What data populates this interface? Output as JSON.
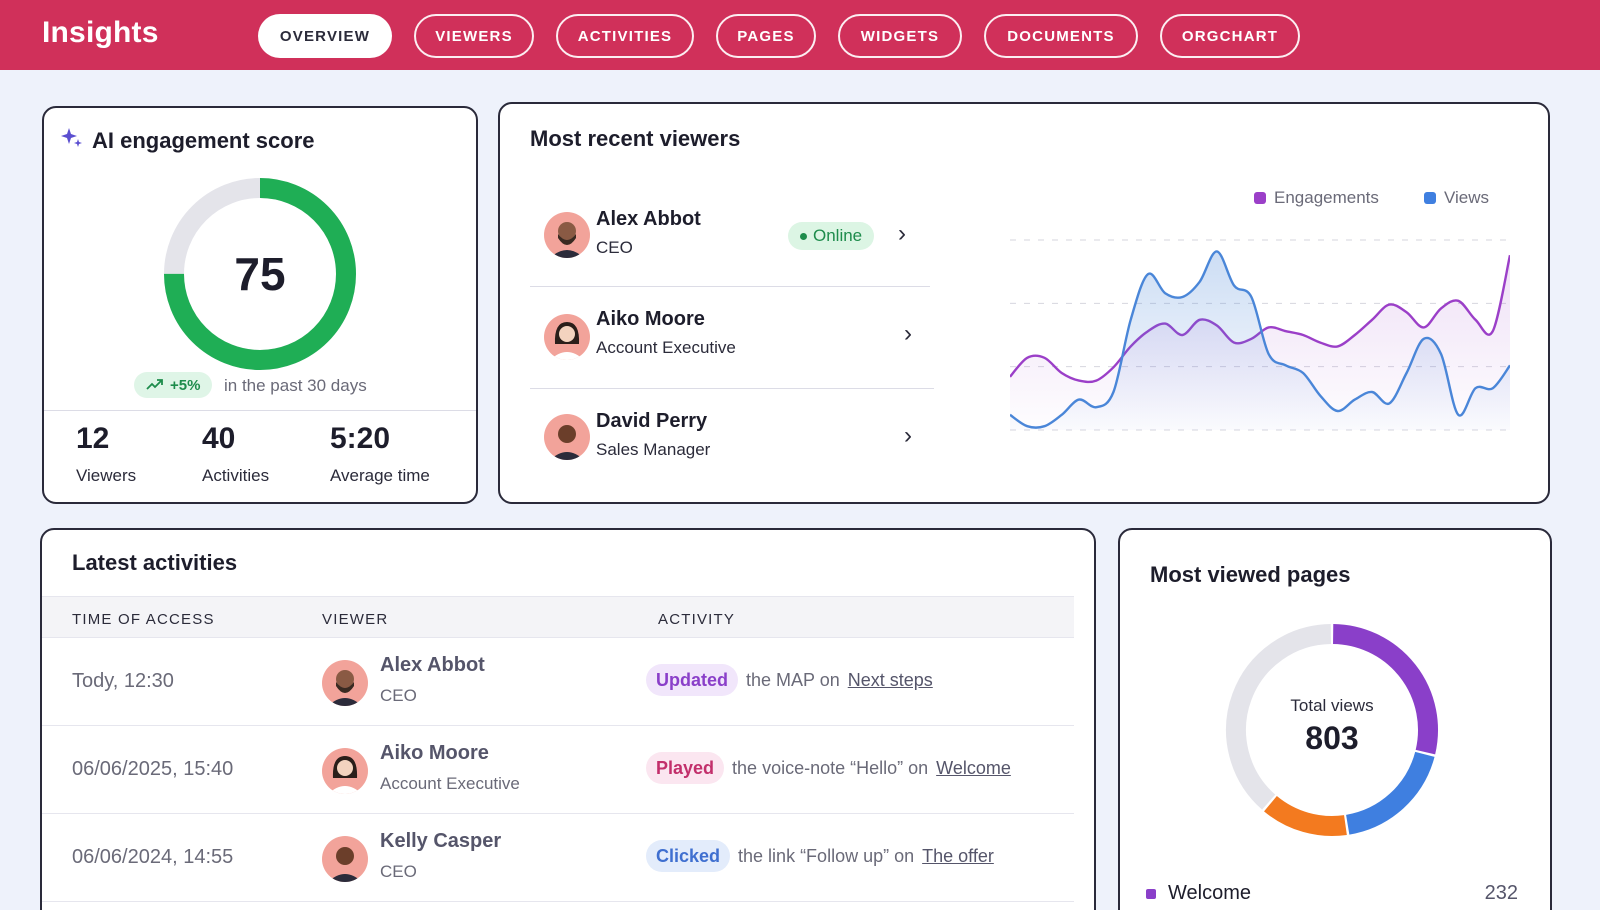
{
  "header": {
    "title": "Insights",
    "tabs": [
      {
        "label": "OVERVIEW"
      },
      {
        "label": "VIEWERS"
      },
      {
        "label": "ACTIVITIES"
      },
      {
        "label": "PAGES"
      },
      {
        "label": "WIDGETS"
      },
      {
        "label": "DOCUMENTS"
      },
      {
        "label": "ORGCHART"
      }
    ],
    "active_tab": "OVERVIEW"
  },
  "engagement": {
    "title": "AI engagement score",
    "score": "75",
    "score_fraction": 0.75,
    "trend": "+5%",
    "trend_text": "in the past 30 days",
    "stats": [
      {
        "value": "12",
        "label": "Viewers"
      },
      {
        "value": "40",
        "label": "Activities"
      },
      {
        "value": "5:20",
        "label": "Average time"
      }
    ]
  },
  "recent_viewers": {
    "title": "Most recent viewers",
    "items": [
      {
        "name": "Alex Abbot",
        "role": "CEO",
        "status": "Online"
      },
      {
        "name": "Aiko Moore",
        "role": "Account Executive"
      },
      {
        "name": "David Perry",
        "role": "Sales Manager"
      }
    ],
    "legend": {
      "engagements": "Engagements",
      "views": "Views"
    }
  },
  "chart_data": {
    "type": "line",
    "title": "",
    "xlabel": "",
    "ylabel": "",
    "ylim": [
      0,
      100
    ],
    "grid": true,
    "legend_placement": "top-right",
    "series": [
      {
        "name": "Engagements",
        "color": "#9b3fc8",
        "values": [
          28,
          38,
          38,
          30,
          26,
          26,
          33,
          44,
          52,
          56,
          50,
          58,
          55,
          46,
          48,
          54,
          52,
          50,
          46,
          44,
          50,
          58,
          66,
          62,
          54,
          64,
          68,
          58,
          52,
          92
        ]
      },
      {
        "name": "Views",
        "color": "#4a86d8",
        "values": [
          8,
          2,
          2,
          8,
          16,
          12,
          20,
          58,
          82,
          72,
          70,
          78,
          94,
          76,
          70,
          40,
          34,
          30,
          18,
          10,
          16,
          20,
          14,
          30,
          48,
          40,
          8,
          22,
          22,
          34
        ]
      }
    ]
  },
  "activities": {
    "title": "Latest activities",
    "columns": [
      "TIME OF ACCESS",
      "VIEWER",
      "ACTIVITY"
    ],
    "rows": [
      {
        "time": "Tody, 12:30",
        "name": "Alex Abbot",
        "role": "CEO",
        "action": "Updated",
        "mid": "the MAP on",
        "target": "Next steps"
      },
      {
        "time": "06/06/2025, 15:40",
        "name": "Aiko Moore",
        "role": "Account Executive",
        "action": "Played",
        "mid": "the voice-note “Hello” on",
        "target": "Welcome"
      },
      {
        "time": "06/06/2024, 14:55",
        "name": "Kelly Casper",
        "role": "CEO",
        "action": "Clicked",
        "mid": "the link “Follow up” on",
        "target": "The offer"
      }
    ]
  },
  "pages": {
    "title": "Most viewed pages",
    "total_label": "Total views",
    "total": "803",
    "segments": [
      {
        "value": 232,
        "color": "#8a3fc9"
      },
      {
        "value": 150,
        "color": "#3f7fe0"
      },
      {
        "value": 110,
        "color": "#f37a1f"
      },
      {
        "value": 311,
        "color": "#e4e4ea"
      }
    ],
    "items": [
      {
        "name": "Welcome",
        "count": "232"
      }
    ]
  },
  "colors": {
    "brand": "#d0305a",
    "success": "#1fae55",
    "track": "#e4e4ea"
  }
}
